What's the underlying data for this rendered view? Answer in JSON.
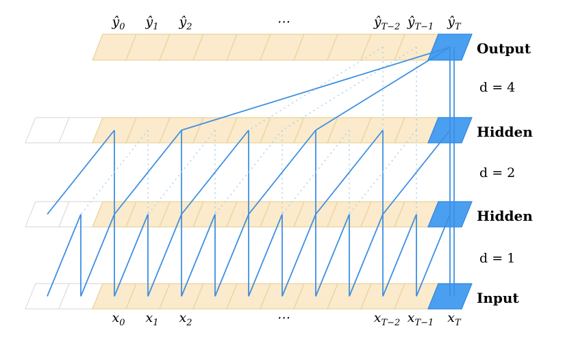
{
  "output_labels": [
    {
      "symbol": "ŷ",
      "index": "0"
    },
    {
      "symbol": "ŷ",
      "index": "1"
    },
    {
      "symbol": "ŷ",
      "index": "2"
    },
    {
      "symbol": "⋯"
    },
    {
      "symbol": "ŷ",
      "index": "T−2"
    },
    {
      "symbol": "ŷ",
      "index": "T−1"
    },
    {
      "symbol": "ŷ",
      "index": "T"
    }
  ],
  "input_labels": [
    {
      "symbol": "x",
      "index": "0"
    },
    {
      "symbol": "x",
      "index": "1"
    },
    {
      "symbol": "x",
      "index": "2"
    },
    {
      "symbol": "⋯"
    },
    {
      "symbol": "x",
      "index": "T−2"
    },
    {
      "symbol": "x",
      "index": "T−1"
    },
    {
      "symbol": "x",
      "index": "T"
    }
  ],
  "layers": [
    {
      "name": "Output"
    },
    {
      "name": "Hidden"
    },
    {
      "name": "Hidden"
    },
    {
      "name": "Input"
    }
  ],
  "dilations": [
    "d = 4",
    "d = 2",
    "d = 1"
  ]
}
